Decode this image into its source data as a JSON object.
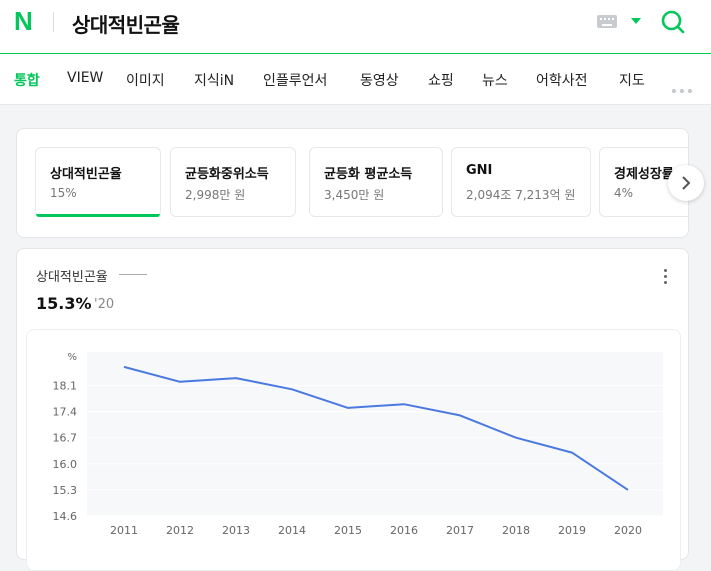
{
  "header": {
    "logo": "N",
    "query": "상대적빈곤율"
  },
  "tabs": [
    {
      "label": "통합",
      "active": true
    },
    {
      "label": "VIEW"
    },
    {
      "label": "이미지"
    },
    {
      "label": "지식iN"
    },
    {
      "label": "인플루언서"
    },
    {
      "label": "동영상"
    },
    {
      "label": "쇼핑"
    },
    {
      "label": "뉴스"
    },
    {
      "label": "어학사전"
    },
    {
      "label": "지도"
    }
  ],
  "indicators": [
    {
      "title": "상대적빈곤율",
      "value": "15%",
      "active": true
    },
    {
      "title": "균등화중위소득",
      "value": "2,998만 원"
    },
    {
      "title": "균등화 평균소득",
      "value": "3,450만 원"
    },
    {
      "title": "GNI",
      "value": "2,094조 7,213억 원"
    },
    {
      "title": "경제성장률",
      "value": "4%"
    }
  ],
  "chart_card": {
    "title": "상대적빈곤율",
    "current_value": "15.3%",
    "current_year": "'20"
  },
  "colors": {
    "accent": "#03c75a",
    "line": "#4a79e0"
  },
  "chart_data": {
    "type": "line",
    "ylabel": "%",
    "x": [
      "2011",
      "2012",
      "2013",
      "2014",
      "2015",
      "2016",
      "2017",
      "2018",
      "2019",
      "2020"
    ],
    "series": [
      {
        "values": [
          18.6,
          18.2,
          18.3,
          18.0,
          17.5,
          17.6,
          17.3,
          16.7,
          16.3,
          15.3
        ]
      }
    ],
    "yticks": [
      18.1,
      17.4,
      16.7,
      16.0,
      15.3,
      14.6
    ],
    "ylim": [
      14.6,
      19.0
    ]
  }
}
